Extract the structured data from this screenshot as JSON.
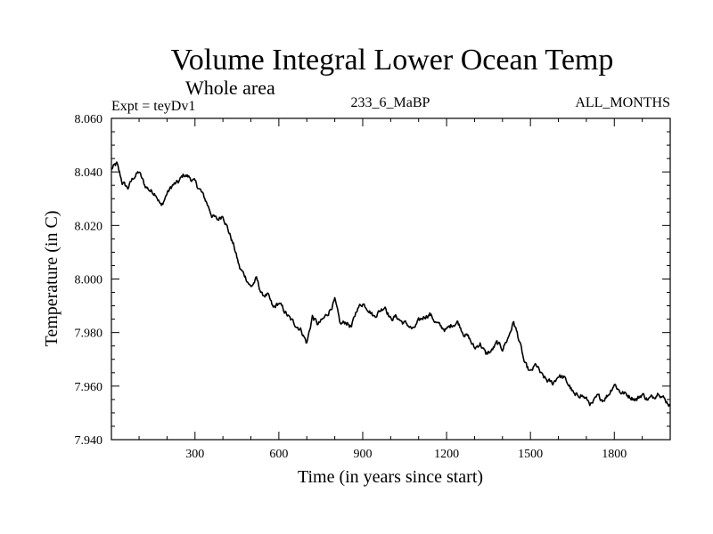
{
  "chart_data": {
    "type": "line",
    "title": "Volume Integral Lower Ocean Temp",
    "subtitle": "Whole area",
    "experiment_label": "Expt = teyDv1",
    "center_label": "233_6_MaBP",
    "right_label": "ALL_MONTHS",
    "xlabel": "Time (in years since start)",
    "ylabel": "Temperature (in C)",
    "xlim": [
      1,
      2000
    ],
    "ylim": [
      7.94,
      8.06
    ],
    "x_ticks": [
      300,
      600,
      900,
      1200,
      1500,
      1800
    ],
    "x_tick_labels": [
      "300",
      "600",
      "900",
      "1200",
      "1500",
      "1800"
    ],
    "y_ticks": [
      7.94,
      7.96,
      7.98,
      8.0,
      8.02,
      8.04,
      8.06
    ],
    "y_tick_labels": [
      "7.940",
      "7.960",
      "7.980",
      "8.000",
      "8.020",
      "8.040",
      "8.060"
    ],
    "grid": false,
    "series": [
      {
        "name": "Volume integral lower ocean temperature",
        "color": "#000000",
        "x": [
          1,
          20,
          40,
          60,
          80,
          100,
          120,
          140,
          160,
          180,
          200,
          220,
          240,
          260,
          280,
          300,
          320,
          340,
          360,
          380,
          400,
          420,
          440,
          460,
          480,
          500,
          520,
          540,
          560,
          580,
          600,
          620,
          640,
          660,
          680,
          700,
          720,
          740,
          760,
          780,
          800,
          820,
          840,
          860,
          880,
          900,
          920,
          940,
          960,
          980,
          1000,
          1020,
          1040,
          1060,
          1080,
          1100,
          1120,
          1140,
          1160,
          1180,
          1200,
          1220,
          1240,
          1260,
          1280,
          1300,
          1320,
          1340,
          1360,
          1380,
          1400,
          1420,
          1440,
          1460,
          1480,
          1500,
          1520,
          1540,
          1560,
          1580,
          1600,
          1620,
          1640,
          1660,
          1680,
          1700,
          1720,
          1740,
          1760,
          1780,
          1800,
          1820,
          1840,
          1860,
          1880,
          1900,
          1920,
          1940,
          1960,
          1980,
          2000
        ],
        "values": [
          8.041,
          8.043,
          8.036,
          8.034,
          8.038,
          8.04,
          8.035,
          8.033,
          8.032,
          8.027,
          8.032,
          8.035,
          8.036,
          8.039,
          8.038,
          8.036,
          8.033,
          8.029,
          8.024,
          8.022,
          8.024,
          8.018,
          8.012,
          8.004,
          8.001,
          7.997,
          8.0,
          7.994,
          7.994,
          7.989,
          7.991,
          7.988,
          7.985,
          7.983,
          7.981,
          7.976,
          7.986,
          7.983,
          7.985,
          7.988,
          7.992,
          7.983,
          7.984,
          7.982,
          7.989,
          7.991,
          7.989,
          7.986,
          7.988,
          7.99,
          7.985,
          7.986,
          7.984,
          7.983,
          7.981,
          7.984,
          7.986,
          7.987,
          7.984,
          7.982,
          7.981,
          7.983,
          7.984,
          7.98,
          7.978,
          7.974,
          7.976,
          7.972,
          7.973,
          7.976,
          7.974,
          7.978,
          7.984,
          7.977,
          7.968,
          7.965,
          7.968,
          7.964,
          7.962,
          7.961,
          7.964,
          7.963,
          7.96,
          7.956,
          7.957,
          7.955,
          7.953,
          7.956,
          7.955,
          7.957,
          7.961,
          7.958,
          7.957,
          7.956,
          7.955,
          7.957,
          7.955,
          7.956,
          7.958,
          7.955,
          7.953
        ]
      }
    ]
  }
}
